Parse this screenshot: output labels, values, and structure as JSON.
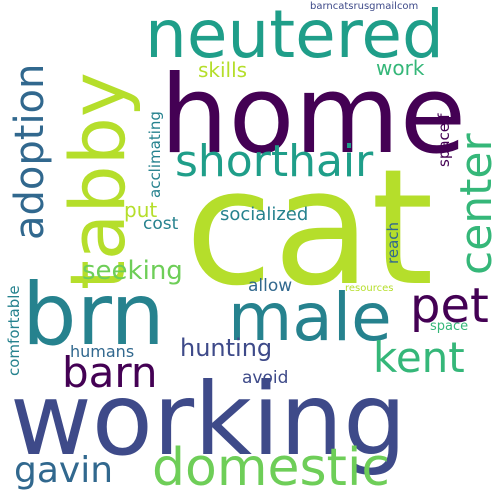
{
  "words": {
    "cat": "cat",
    "home": "home",
    "working": "working",
    "brn": "brn",
    "tabby": "tabby",
    "neutered": "neutered",
    "male": "male",
    "domestic": "domestic",
    "shorthair": "shorthair",
    "adoption": "adoption",
    "center": "center",
    "pet": "pet",
    "kent": "kent",
    "barn": "barn",
    "gavin": "gavin",
    "seeking": "seeking",
    "hunting": "hunting",
    "socialized": "socialized",
    "skills": "skills",
    "work": "work",
    "put": "put",
    "cost": "cost",
    "allow": "allow",
    "avoid": "avoid",
    "humans": "humans",
    "acclimating": "acclimating",
    "spaceif": "spaceif",
    "reach": "reach",
    "resources": "resources",
    "space": "space",
    "comfortable": "comfortable",
    "barncatsrusgmailcom": "barncatsrusgmailcom"
  },
  "colors": {
    "dark_purple": "#440154",
    "indigo": "#3e4a89",
    "blue": "#31688e",
    "teal": "#26828e",
    "green_teal": "#1f9e89",
    "green": "#35b779",
    "light_green": "#6ece58",
    "lime": "#b5de2b"
  }
}
